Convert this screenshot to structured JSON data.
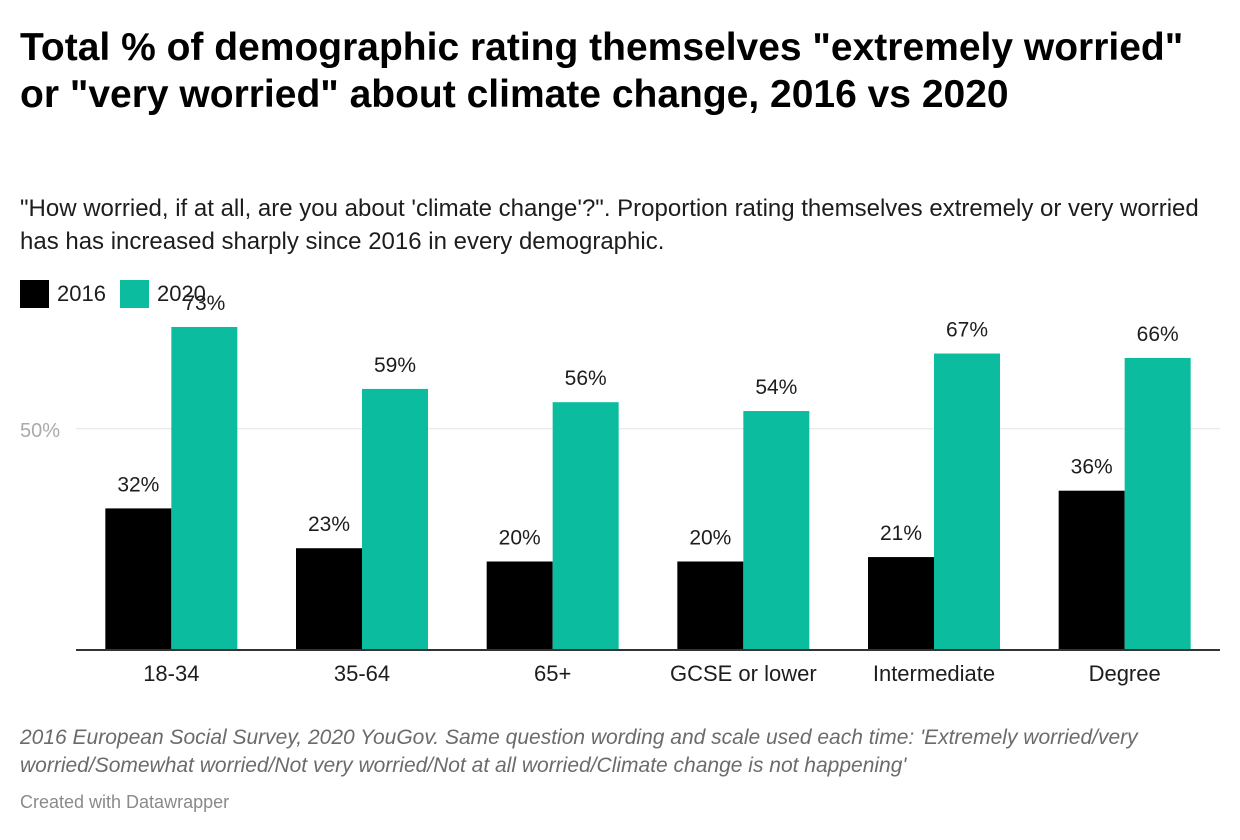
{
  "title": "Total % of demographic rating themselves \"extremely worried\" or \"very worried\" about climate change, 2016 vs 2020",
  "subtitle": "\"How worried, if at all, are you about 'climate change'?\". Proportion rating themselves extremely or very worried has has increased sharply since 2016 in every demographic.",
  "legend": [
    {
      "label": "2016",
      "color": "#000000"
    },
    {
      "label": "2020",
      "color": "#0bbc9f"
    }
  ],
  "chart_data": {
    "type": "bar",
    "categories": [
      "18-34",
      "35-64",
      "65+",
      "GCSE or lower",
      "Intermediate",
      "Degree"
    ],
    "series": [
      {
        "name": "2016",
        "color": "#000000",
        "values": [
          32,
          23,
          20,
          20,
          21,
          36
        ],
        "labels": [
          "32%",
          "23%",
          "20%",
          "20%",
          "21%",
          "36%"
        ]
      },
      {
        "name": "2020",
        "color": "#0bbc9f",
        "values": [
          73,
          59,
          56,
          54,
          67,
          66
        ],
        "labels": [
          "73%",
          "59%",
          "56%",
          "54%",
          "67%",
          "66%"
        ]
      }
    ],
    "y_ticks": [
      {
        "value": 50,
        "label": "50%"
      }
    ],
    "ylim": [
      0,
      80
    ],
    "grid": true,
    "legend_position": "top-left"
  },
  "notes": "2016 European Social Survey, 2020 YouGov. Same question wording and scale used each time: 'Extremely worried/very worried/Somewhat worried/Not very worried/Not at all worried/Climate change is not happening'",
  "credit": "Created with Datawrapper"
}
